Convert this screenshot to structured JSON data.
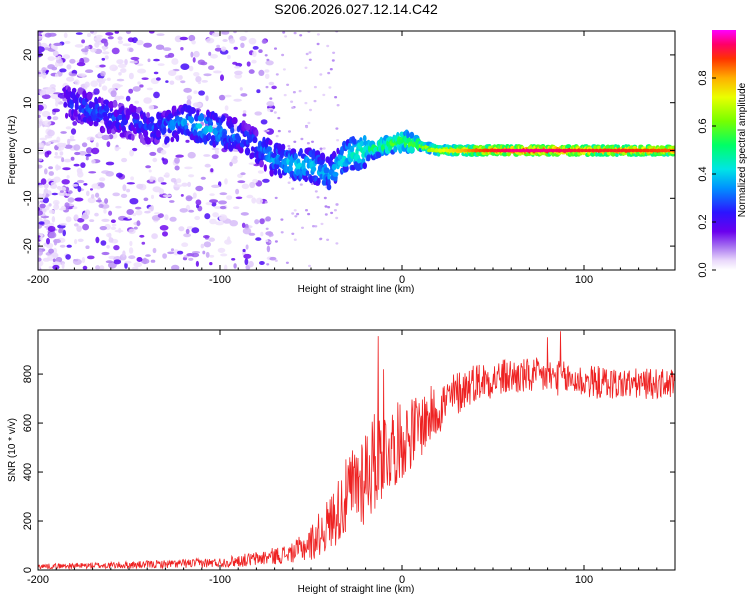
{
  "title": "S206.2026.027.12.14.C42",
  "chart_data": [
    {
      "type": "heatmap",
      "description": "Spectrogram of frequency vs height of straight line, colored by normalized spectral amplitude",
      "xlabel": "Height of straight line (km)",
      "ylabel": "Frequency (Hz)",
      "xlim": [
        -200,
        150
      ],
      "ylim": [
        -25,
        25
      ],
      "x_ticks": [
        -200,
        -100,
        0,
        100
      ],
      "y_ticks": [
        -20,
        -10,
        0,
        10,
        20
      ],
      "x_tick_labels": [
        "-200",
        "-100",
        "0",
        "100"
      ],
      "y_tick_labels": [
        "-20",
        "-10",
        "0",
        "10",
        "20"
      ],
      "colorbar": {
        "label": "Normalized spectral amplitude",
        "range": [
          0,
          1
        ],
        "ticks": [
          0.0,
          0.2,
          0.4,
          0.6,
          0.8
        ],
        "tick_labels": [
          "0.0",
          "0.2",
          "0.4",
          "0.6",
          "0.8"
        ]
      },
      "ridge": {
        "x": [
          -180,
          -170,
          -160,
          -150,
          -140,
          -130,
          -120,
          -110,
          -100,
          -90,
          -80,
          -70,
          -60,
          -50,
          -40,
          -30,
          -20,
          -10,
          0,
          10,
          20,
          40,
          60,
          80,
          100,
          120,
          150
        ],
        "frequency": [
          10,
          8,
          7,
          6,
          5,
          5,
          6,
          5,
          4,
          3,
          1,
          -2,
          -3,
          -3,
          -5,
          -1,
          0,
          1,
          2,
          1,
          0,
          0,
          0,
          0,
          0,
          0,
          0
        ],
        "amplitude": [
          0.25,
          0.3,
          0.25,
          0.25,
          0.25,
          0.3,
          0.35,
          0.4,
          0.35,
          0.3,
          0.3,
          0.35,
          0.4,
          0.4,
          0.35,
          0.45,
          0.5,
          0.55,
          0.6,
          0.6,
          0.7,
          0.85,
          0.95,
          0.95,
          0.9,
          0.9,
          0.85
        ]
      }
    },
    {
      "type": "line",
      "xlabel": "Height of straight line (km)",
      "ylabel": "SNR (10 * v/v)",
      "xlim": [
        -200,
        150
      ],
      "ylim": [
        0,
        980
      ],
      "x_ticks": [
        -200,
        -100,
        0,
        100
      ],
      "y_ticks": [
        0,
        200,
        400,
        600,
        800
      ],
      "x_tick_labels": [
        "-200",
        "-100",
        "0",
        "100"
      ],
      "y_tick_labels": [
        "0",
        "200",
        "400",
        "600",
        "800"
      ],
      "series": [
        {
          "name": "SNR",
          "color": "#ee2222",
          "trend_x": [
            -200,
            -150,
            -100,
            -80,
            -60,
            -50,
            -40,
            -30,
            -20,
            -10,
            0,
            10,
            20,
            30,
            40,
            60,
            80,
            100,
            120,
            150
          ],
          "trend_y": [
            15,
            20,
            30,
            45,
            70,
            110,
            190,
            300,
            400,
            480,
            530,
            590,
            660,
            720,
            770,
            790,
            790,
            770,
            760,
            760
          ],
          "noise_x": [
            -200,
            -100,
            -60,
            -40,
            -20,
            0,
            20,
            40,
            100,
            150
          ],
          "noise_amplitude": [
            10,
            20,
            40,
            110,
            220,
            160,
            110,
            80,
            70,
            60
          ],
          "peaks": [
            {
              "x": -13,
              "y": 955
            },
            {
              "x": -10,
              "y": 820
            },
            {
              "x": 87,
              "y": 975
            },
            {
              "x": 80,
              "y": 950
            }
          ]
        }
      ]
    }
  ]
}
